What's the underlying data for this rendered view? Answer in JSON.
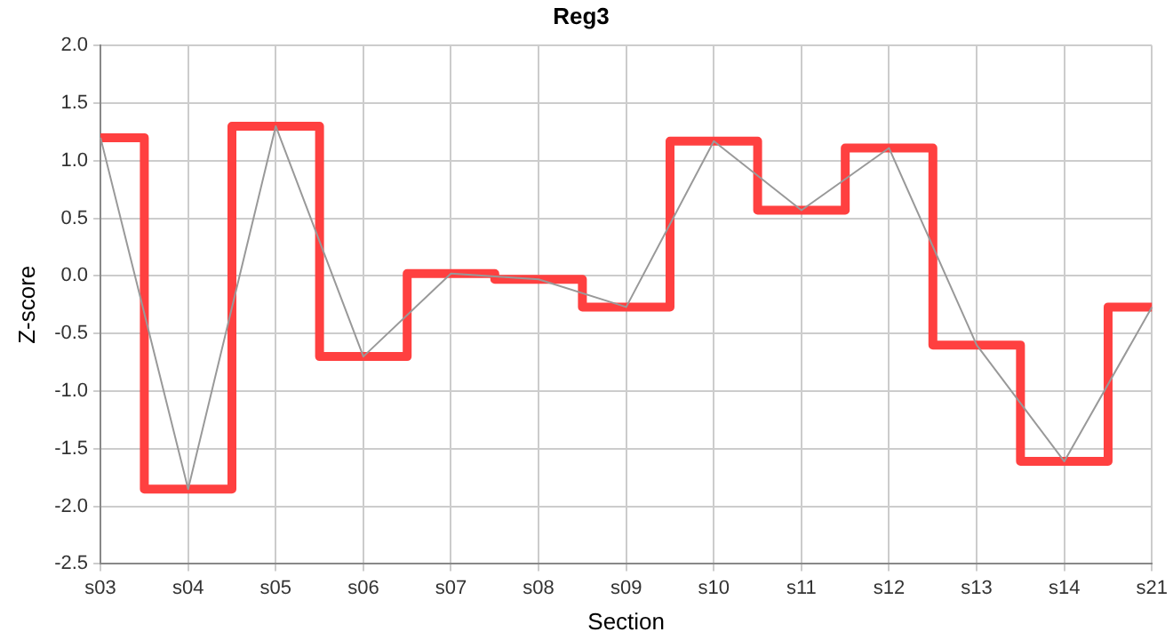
{
  "chart_data": {
    "type": "line",
    "title": "Reg3",
    "xlabel": "Section",
    "ylabel": "Z-score",
    "categories": [
      "s03",
      "s04",
      "s05",
      "s06",
      "s07",
      "s08",
      "s09",
      "s10",
      "s11",
      "s12",
      "s13",
      "s14",
      "s21"
    ],
    "series": [
      {
        "type": "line",
        "color": "#999999",
        "values": [
          1.2,
          -1.85,
          1.3,
          -0.7,
          0.02,
          -0.03,
          -0.27,
          1.17,
          0.57,
          1.11,
          -0.6,
          -1.61,
          -0.27
        ]
      },
      {
        "type": "step",
        "color": "#ff4040",
        "values": [
          1.2,
          -1.85,
          1.3,
          -0.7,
          0.02,
          -0.03,
          -0.27,
          1.17,
          0.57,
          1.11,
          -0.6,
          -1.61,
          -0.27
        ]
      }
    ],
    "ylim": [
      -2.5,
      2.0
    ],
    "yticks": [
      {
        "value": -2.5,
        "label": "-2.5"
      },
      {
        "value": -2,
        "label": "-2.0"
      },
      {
        "value": -1.5,
        "label": "-1.5"
      },
      {
        "value": -1,
        "label": "-1.0"
      },
      {
        "value": -0.5,
        "label": "-0.5"
      },
      {
        "value": 0,
        "label": "0.0"
      },
      {
        "value": 0.5,
        "label": "0.5"
      },
      {
        "value": 1,
        "label": "1.0"
      },
      {
        "value": 1.5,
        "label": "1.5"
      },
      {
        "value": 2,
        "label": "2.0"
      }
    ],
    "grid": true,
    "legend": false,
    "marker": "none"
  }
}
